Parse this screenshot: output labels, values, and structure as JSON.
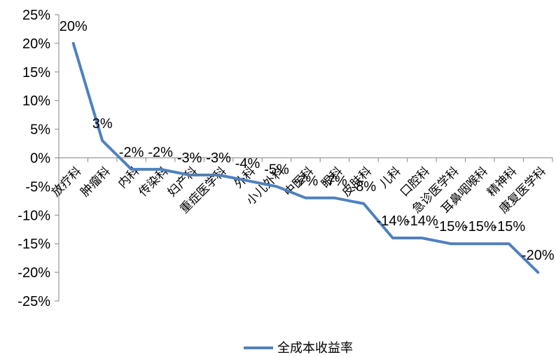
{
  "chart_data": {
    "type": "line",
    "categories": [
      "放疗科",
      "肿瘤科",
      "内科",
      "传染科",
      "妇产科",
      "重症医学科",
      "外科",
      "小儿外科",
      "中医科",
      "眼科",
      "皮肤科",
      "儿科",
      "口腔科",
      "急诊医学科",
      "耳鼻咽喉科",
      "精神科",
      "康复医学科"
    ],
    "series": [
      {
        "name": "全成本收益率",
        "values": [
          20,
          3,
          -2,
          -2,
          -3,
          -3,
          -4,
          -5,
          -7,
          -7,
          -8,
          -14,
          -14,
          -15,
          -15,
          -15,
          -20
        ],
        "labels": [
          "20%",
          "3%",
          "-2%",
          "-2%",
          "-3%",
          "-3%",
          "-4%",
          "-5%",
          "-7%",
          "-7%",
          "-8%",
          "-14%",
          "-14%",
          "-15%",
          "-15%",
          "-15%",
          "-20%"
        ]
      }
    ],
    "yticks": [
      "25%",
      "20%",
      "15%",
      "10%",
      "5%",
      "0%",
      "-5%",
      "-10%",
      "-15%",
      "-20%",
      "-25%"
    ],
    "ylim": [
      -25,
      25
    ],
    "ystep": 5,
    "grid": false,
    "legend_position": "bottom",
    "colors": {
      "line": "#4F81BD",
      "axis": "#868686"
    }
  }
}
